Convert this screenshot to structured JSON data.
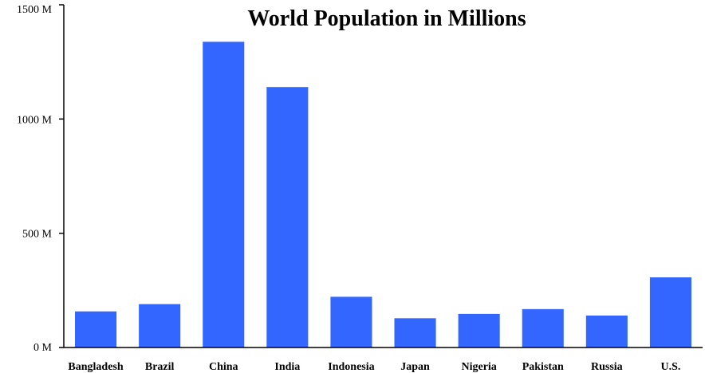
{
  "chart_data": {
    "type": "bar",
    "title": "World Population in Millions",
    "categories": [
      "Bangladesh",
      "Brazil",
      "China",
      "India",
      "Indonesia",
      "Japan",
      "Nigeria",
      "Pakistan",
      "Russia",
      "U.S."
    ],
    "values": [
      158,
      190,
      1338,
      1140,
      222,
      128,
      147,
      168,
      140,
      307
    ],
    "ylim": [
      0,
      1500
    ],
    "yticks": [
      0,
      500,
      1000,
      1500
    ],
    "ytick_labels": [
      "0 M",
      "500 M",
      "1000 M",
      "1500 M"
    ],
    "xlabel": "",
    "ylabel": "",
    "grid": false,
    "bar_color": "#3366ff",
    "axis_color": "#000000",
    "background": "#ffffff"
  }
}
